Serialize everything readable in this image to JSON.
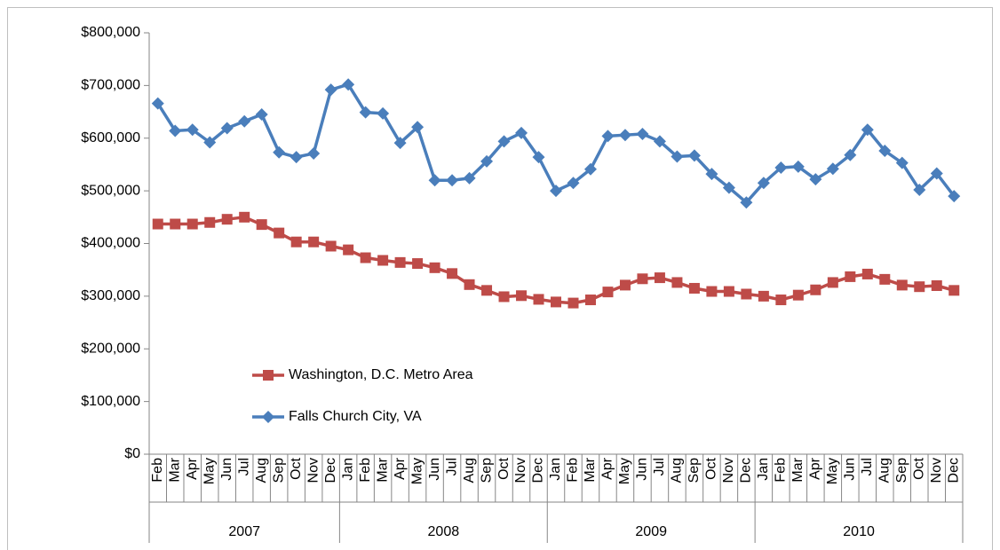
{
  "chart_data": {
    "type": "line",
    "category_groups": [
      {
        "name": "2007",
        "categories": [
          "Feb",
          "Mar",
          "Apr",
          "May",
          "Jun",
          "Jul",
          "Aug",
          "Sep",
          "Oct",
          "Nov",
          "Dec"
        ]
      },
      {
        "name": "2008",
        "categories": [
          "Jan",
          "Feb",
          "Mar",
          "Apr",
          "May",
          "Jun",
          "Jul",
          "Aug",
          "Sep",
          "Oct",
          "Nov",
          "Dec"
        ]
      },
      {
        "name": "2009",
        "categories": [
          "Jan",
          "Feb",
          "Mar",
          "Apr",
          "May",
          "Jun",
          "Jul",
          "Aug",
          "Sep",
          "Oct",
          "Nov",
          "Dec"
        ]
      },
      {
        "name": "2010",
        "categories": [
          "Jan",
          "Feb",
          "Mar",
          "Apr",
          "May",
          "Jun",
          "Jul",
          "Aug",
          "Sep",
          "Oct",
          "Nov",
          "Dec"
        ]
      }
    ],
    "series": [
      {
        "name": "Washington, D.C. Metro Area",
        "color": "#be4b48",
        "marker": "square",
        "values": [
          437000,
          437000,
          437000,
          440000,
          446000,
          450000,
          436000,
          420000,
          403000,
          403000,
          395000,
          388000,
          373000,
          368000,
          364000,
          362000,
          354000,
          343000,
          322000,
          311000,
          299000,
          301000,
          294000,
          289000,
          287000,
          293000,
          308000,
          321000,
          333000,
          335000,
          326000,
          315000,
          309000,
          309000,
          304000,
          300000,
          293000,
          302000,
          312000,
          326000,
          337000,
          342000,
          332000,
          321000,
          318000,
          320000,
          311000
        ]
      },
      {
        "name": "Falls Church City, VA",
        "color": "#4a7ebb",
        "marker": "diamond",
        "values": [
          666000,
          614000,
          616000,
          592000,
          619000,
          632000,
          645000,
          573000,
          564000,
          571000,
          692000,
          702000,
          649000,
          647000,
          591000,
          621000,
          520000,
          520000,
          524000,
          556000,
          594000,
          610000,
          564000,
          500000,
          515000,
          541000,
          604000,
          606000,
          608000,
          594000,
          565000,
          567000,
          532000,
          506000,
          478000,
          515000,
          544000,
          546000,
          522000,
          542000,
          568000,
          616000,
          576000,
          553000,
          502000,
          533000,
          490000
        ]
      }
    ],
    "ylim": [
      0,
      800000
    ],
    "yticks": [
      {
        "value": 0,
        "label": "$0"
      },
      {
        "value": 100000,
        "label": "$100,000"
      },
      {
        "value": 200000,
        "label": "$200,000"
      },
      {
        "value": 300000,
        "label": "$300,000"
      },
      {
        "value": 400000,
        "label": "$400,000"
      },
      {
        "value": 500000,
        "label": "$500,000"
      },
      {
        "value": 600000,
        "label": "$600,000"
      },
      {
        "value": 700000,
        "label": "$700,000"
      },
      {
        "value": 800000,
        "label": "$800,000"
      }
    ],
    "grid": false
  }
}
